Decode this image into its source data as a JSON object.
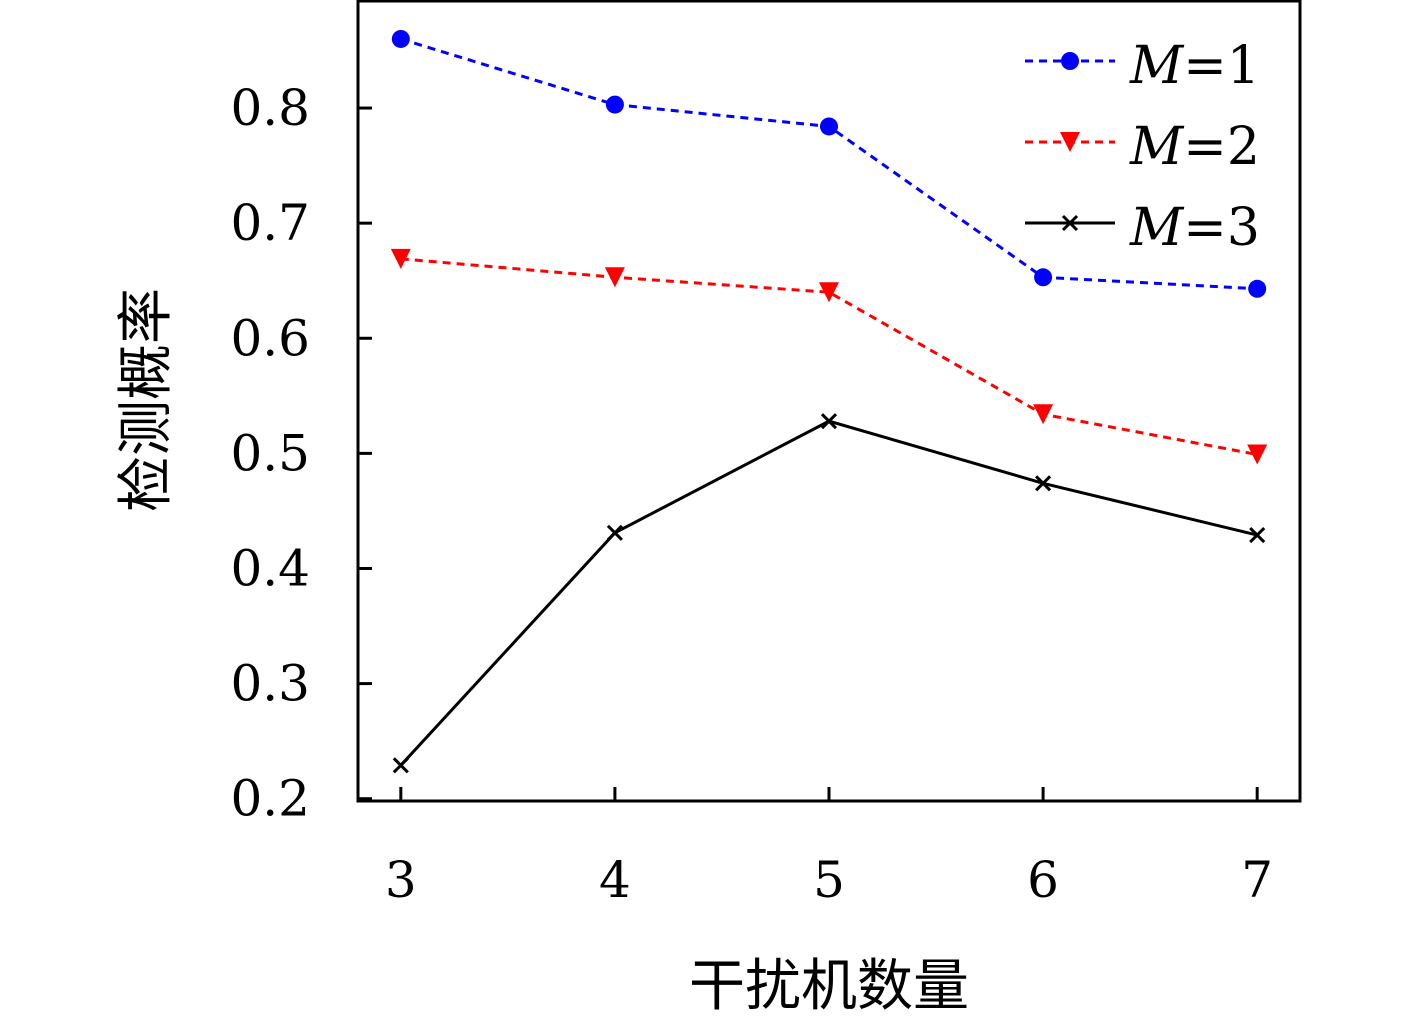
{
  "chart_data": {
    "type": "line",
    "title": "",
    "xlabel": "干扰机数量",
    "ylabel": "检测概率",
    "x": [
      3,
      4,
      5,
      6,
      7
    ],
    "xlim": [
      2.8,
      7.2
    ],
    "ylim": [
      0.198,
      0.893
    ],
    "xticks": [
      "3",
      "4",
      "5",
      "6",
      "7"
    ],
    "yticks": [
      "0.2",
      "0.3",
      "0.4",
      "0.5",
      "0.6",
      "0.7",
      "0.8"
    ],
    "grid": false,
    "legend_position": "top-right",
    "series": [
      {
        "name": "M=1",
        "name_italic": "M",
        "name_rest": "=1",
        "color": "#0000ff",
        "dash": "dotted",
        "marker": "circle",
        "values": [
          0.86,
          0.803,
          0.784,
          0.653,
          0.643
        ]
      },
      {
        "name": "M=2",
        "name_italic": "M",
        "name_rest": "=2",
        "color": "#ff0000",
        "dash": "dotted",
        "marker": "triangle-down",
        "values": [
          0.669,
          0.653,
          0.64,
          0.534,
          0.499
        ]
      },
      {
        "name": "M=3",
        "name_italic": "M",
        "name_rest": "=3",
        "color": "#000000",
        "dash": "solid",
        "marker": "x",
        "values": [
          0.229,
          0.431,
          0.528,
          0.474,
          0.429
        ]
      }
    ]
  }
}
